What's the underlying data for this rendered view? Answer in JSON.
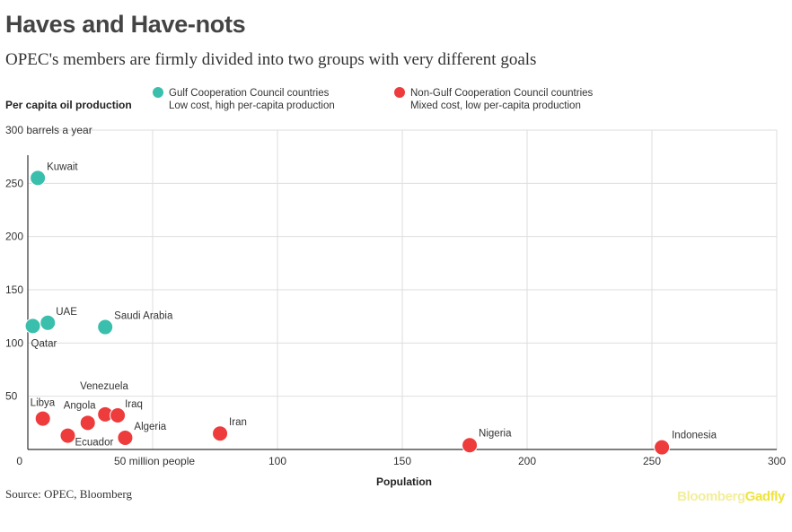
{
  "title": "Haves and Have-nots",
  "subtitle": "OPEC's members are firmly divided into two groups with very different goals",
  "source": "Source: OPEC, Bloomberg",
  "brand": {
    "part1": "Bloomberg",
    "part2": "Gadfly"
  },
  "colors": {
    "gcc": "#3bbfad",
    "non_gcc": "#ee3b3b",
    "grid": "#dedede",
    "axis": "#333333"
  },
  "legend": [
    {
      "name": "Gulf Cooperation Council countries",
      "note": "Low cost, high per-capita production",
      "color": "#3bbfad"
    },
    {
      "name": "Non-Gulf Cooperation Council countries",
      "note": "Mixed cost, low per-capita production",
      "color": "#ee3b3b"
    }
  ],
  "chart_data": {
    "type": "scatter",
    "title": "Haves and Have-nots",
    "xlabel": "Population",
    "ylabel": "Per capita oil production",
    "ylabel_unit": "300 barrels a year",
    "xlim": [
      0,
      300
    ],
    "ylim": [
      0,
      300
    ],
    "x_ticks": [
      {
        "value": 0,
        "label": "0"
      },
      {
        "value": 50,
        "label": "50 million people"
      },
      {
        "value": 100,
        "label": "100"
      },
      {
        "value": 150,
        "label": "150"
      },
      {
        "value": 200,
        "label": "200"
      },
      {
        "value": 250,
        "label": "250"
      },
      {
        "value": 300,
        "label": "300"
      }
    ],
    "y_ticks": [
      {
        "value": 50,
        "label": "50"
      },
      {
        "value": 100,
        "label": "100"
      },
      {
        "value": 150,
        "label": "150"
      },
      {
        "value": 200,
        "label": "200"
      },
      {
        "value": 250,
        "label": "250"
      }
    ],
    "series": [
      {
        "name": "Gulf Cooperation Council countries",
        "key": "gcc",
        "points": [
          {
            "label": "Kuwait",
            "x": 4,
            "y": 255
          },
          {
            "label": "UAE",
            "x": 8,
            "y": 119
          },
          {
            "label": "Qatar",
            "x": 2,
            "y": 116
          },
          {
            "label": "Saudi Arabia",
            "x": 31,
            "y": 115
          }
        ]
      },
      {
        "name": "Non-Gulf Cooperation Council countries",
        "key": "non_gcc",
        "points": [
          {
            "label": "Libya",
            "x": 6,
            "y": 29
          },
          {
            "label": "Ecuador",
            "x": 16,
            "y": 13
          },
          {
            "label": "Angola",
            "x": 24,
            "y": 25
          },
          {
            "label": "Venezuela",
            "x": 31,
            "y": 33
          },
          {
            "label": "Iraq",
            "x": 36,
            "y": 32
          },
          {
            "label": "Algeria",
            "x": 39,
            "y": 11
          },
          {
            "label": "Iran",
            "x": 77,
            "y": 15
          },
          {
            "label": "Nigeria",
            "x": 177,
            "y": 4
          },
          {
            "label": "Indonesia",
            "x": 254,
            "y": 2
          }
        ]
      }
    ]
  }
}
